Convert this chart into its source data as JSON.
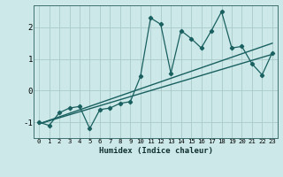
{
  "xlabel": "Humidex (Indice chaleur)",
  "ylabel": "",
  "bg_color": "#cce8e8",
  "grid_color": "#aacaca",
  "line_color": "#1a6060",
  "xlim": [
    -0.5,
    23.5
  ],
  "ylim": [
    -1.5,
    2.7
  ],
  "yticks": [
    -1,
    0,
    1,
    2
  ],
  "xticks": [
    0,
    1,
    2,
    3,
    4,
    5,
    6,
    7,
    8,
    9,
    10,
    11,
    12,
    13,
    14,
    15,
    16,
    17,
    18,
    19,
    20,
    21,
    22,
    23
  ],
  "data_x": [
    0,
    1,
    2,
    3,
    4,
    5,
    6,
    7,
    8,
    9,
    10,
    11,
    12,
    13,
    14,
    15,
    16,
    17,
    18,
    19,
    20,
    21,
    22,
    23
  ],
  "data_y": [
    -1.0,
    -1.1,
    -0.7,
    -0.55,
    -0.5,
    -1.2,
    -0.6,
    -0.55,
    -0.4,
    -0.35,
    0.45,
    2.3,
    2.1,
    0.55,
    1.9,
    1.65,
    1.35,
    1.9,
    2.5,
    1.35,
    1.4,
    0.85,
    0.5,
    1.2
  ],
  "trend1_x": [
    0,
    23
  ],
  "trend1_y": [
    -1.05,
    1.15
  ],
  "trend2_x": [
    0,
    23
  ],
  "trend2_y": [
    -1.05,
    1.5
  ]
}
